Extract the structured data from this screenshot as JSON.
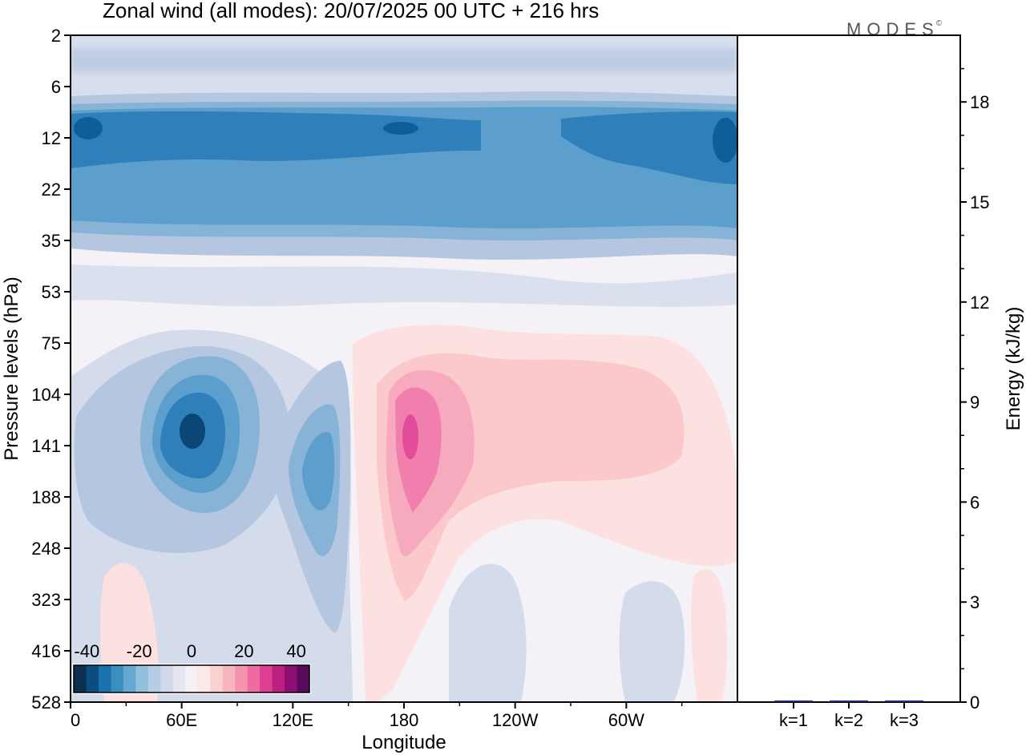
{
  "title": "Zonal wind (all modes):  20/07/2025  00 UTC  + 216 hrs",
  "logo": {
    "text": "MODES",
    "mark": "©"
  },
  "colors": {
    "scale": [
      "#0d2f4f",
      "#0a4d80",
      "#1a72ac",
      "#3b8fc0",
      "#66a9d0",
      "#92c1dd",
      "#b7cde5",
      "#d0d8ea",
      "#e6e6f1",
      "#f5f0f5",
      "#fde8e8",
      "#fad0d0",
      "#f7b5bd",
      "#f595ad",
      "#f06aa2",
      "#de3f92",
      "#bb2081",
      "#8d0f73",
      "#5a0a5b"
    ],
    "pos1": "#fde0e0",
    "pos2": "#fbc9cc",
    "pos3": "#f7a9bd",
    "pos4": "#f07fae",
    "pos5": "#e24d9a",
    "neg1": "#d4dcec",
    "neg2": "#b4c6e0",
    "neg3": "#87b3d6",
    "neg4": "#5d9fcc",
    "neg5": "#2f7fba",
    "neg6": "#0e5f98",
    "neg7": "#0b4674",
    "neutral": "#f4f1f7",
    "bar": "#1f2a7a"
  },
  "chart_data": [
    {
      "type": "heatmap",
      "title": "Zonal wind (all modes):  20/07/2025  00 UTC  + 216 hrs",
      "xlabel": "Longitude",
      "ylabel": "Pressure levels (hPa)",
      "x_ticks": [
        "0",
        "60E",
        "120E",
        "180",
        "120W",
        "60W"
      ],
      "y_ticks": [
        "2",
        "6",
        "12",
        "22",
        "35",
        "53",
        "75",
        "104",
        "141",
        "188",
        "248",
        "323",
        "416",
        "528"
      ],
      "colorbar": {
        "ticks": [
          "-40",
          "-20",
          "0",
          "20",
          "40"
        ],
        "range": [
          -45,
          45
        ]
      },
      "features": [
        {
          "name": "stratospheric easterly jet",
          "level_hPa": [
            8,
            35
          ],
          "lon_range": "0-360",
          "value_ms": -30
        },
        {
          "name": "upper easterly core 60E",
          "level_hPa": 130,
          "lon": "65E",
          "value_ms": -40
        },
        {
          "name": "easterly core 140E",
          "level_hPa": 160,
          "lon": "140E",
          "value_ms": -25
        },
        {
          "name": "westerly duct maximum",
          "level_hPa": 140,
          "lon": "180",
          "value_ms": 25
        }
      ]
    },
    {
      "type": "bar",
      "ylabel": "Energy (kJ/kg)",
      "categories": [
        "k=1",
        "k=2",
        "k=3"
      ],
      "values": [
        0.03,
        0.01,
        0.005
      ],
      "ylim": [
        0,
        20
      ],
      "y_ticks": [
        "0",
        "3",
        "6",
        "9",
        "12",
        "15",
        "18"
      ]
    }
  ]
}
